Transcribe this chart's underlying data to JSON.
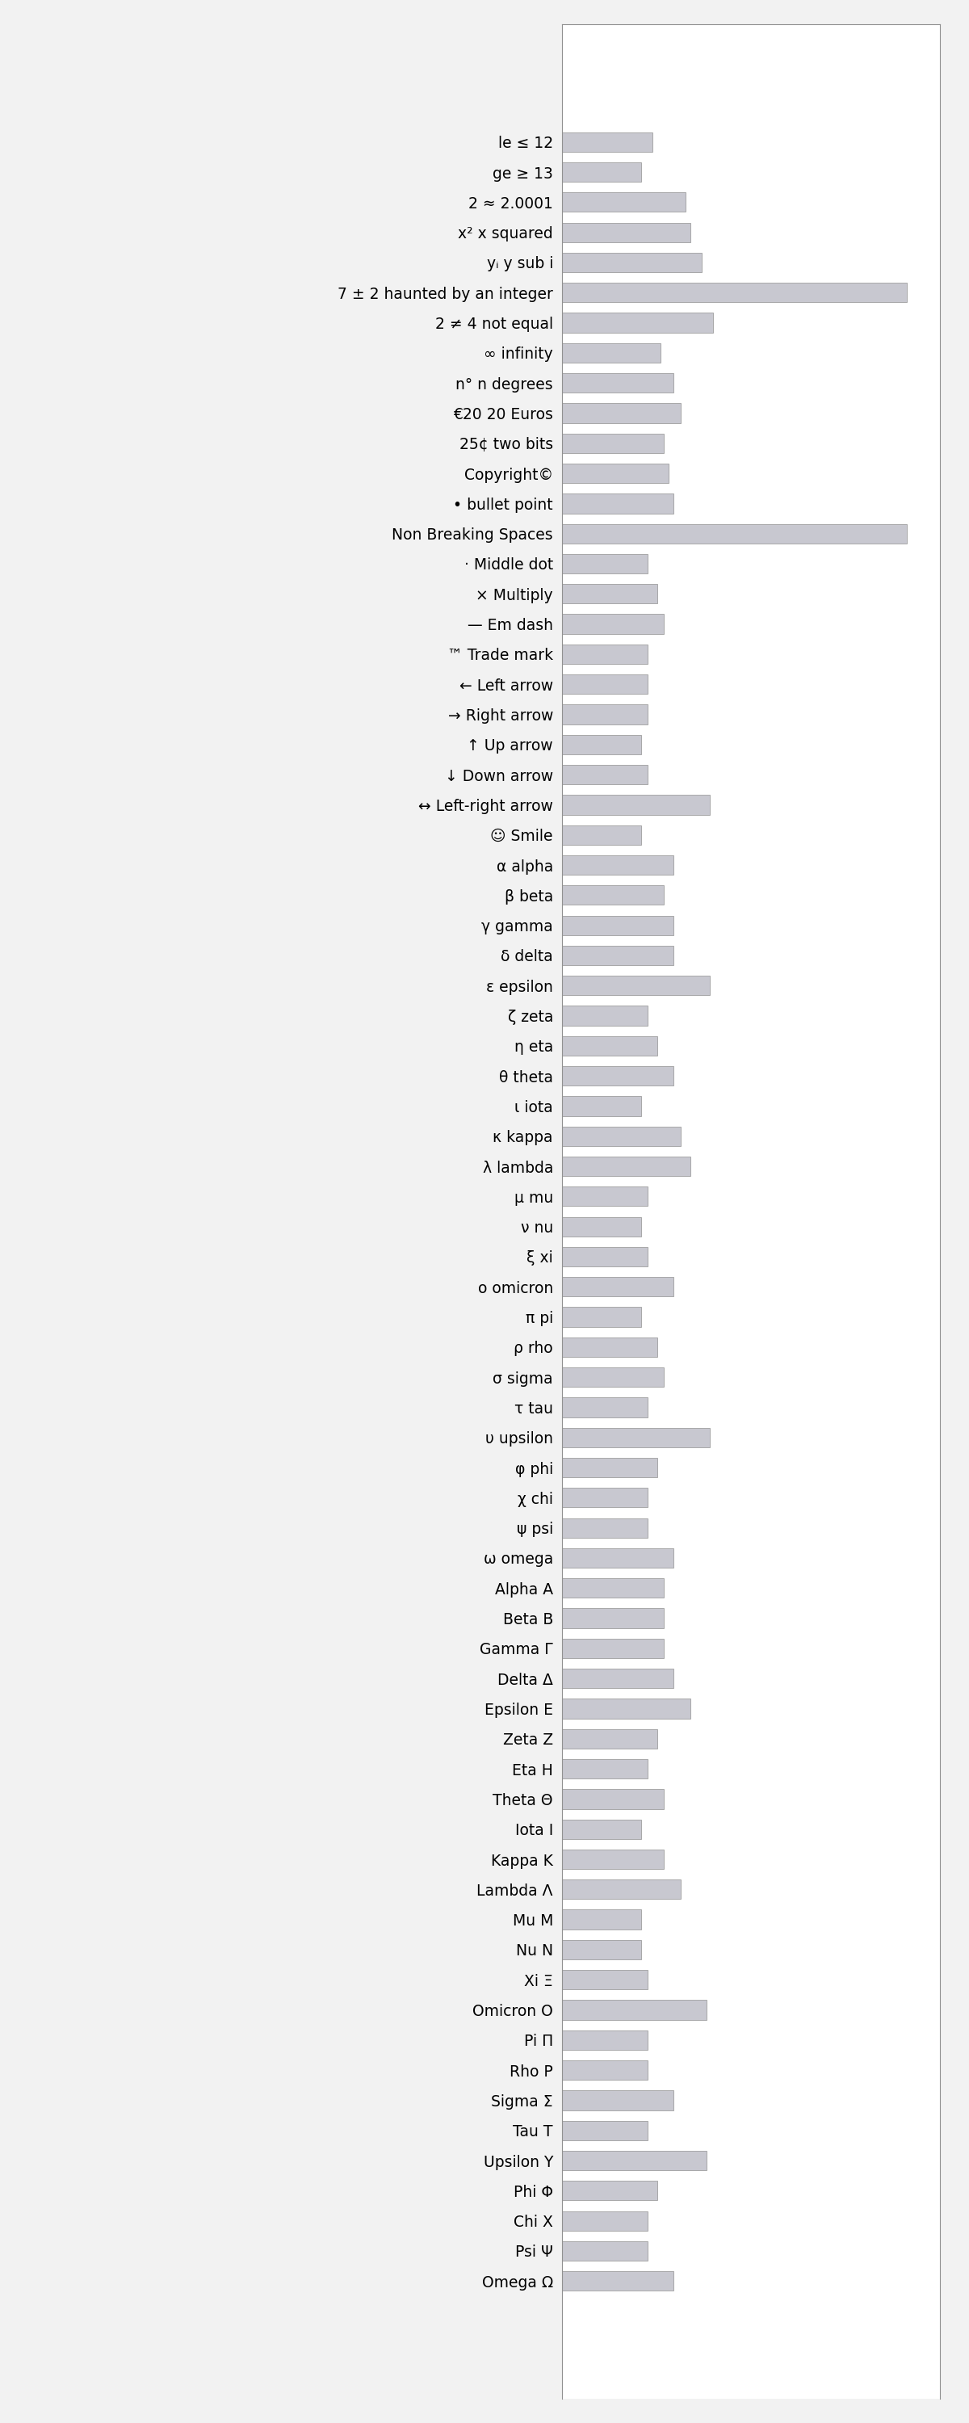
{
  "labels": [
    "le ≤ 12",
    "ge ≥ 13",
    "2 ≈ 2.0001",
    "x² x squared",
    "yᵢ y sub i",
    "7 ± 2 haunted by an integer",
    "2 ≠ 4 not equal",
    "∞ infinity",
    "n° n degrees",
    "€20 20 Euros",
    "25¢ two bits",
    "Copyright©",
    "• bullet point",
    "Non Breaking Spaces",
    "· Middle dot",
    "× Multiply",
    "— Em dash",
    "™ Trade mark",
    "← Left arrow",
    "→ Right arrow",
    "↑ Up arrow",
    "↓ Down arrow",
    "↔ Left-right arrow",
    "☺ Smile",
    "α alpha",
    "β beta",
    "γ gamma",
    "δ delta",
    "ε epsilon",
    "ζ zeta",
    "η eta",
    "θ theta",
    "ι iota",
    "κ kappa",
    "λ lambda",
    "μ mu",
    "ν nu",
    "ξ xi",
    "o omicron",
    "π pi",
    "ρ rho",
    "σ sigma",
    "τ tau",
    "υ upsilon",
    "φ phi",
    "χ chi",
    "ψ psi",
    "ω omega",
    "Alpha A",
    "Beta B",
    "Gamma Γ",
    "Delta Δ",
    "Epsilon E",
    "Zeta Z",
    "Eta H",
    "Theta Θ",
    "Iota I",
    "Kappa K",
    "Lambda Λ",
    "Mu M",
    "Nu N",
    "Xi Ξ",
    "Omicron O",
    "Pi Π",
    "Rho P",
    "Sigma Σ",
    "Tau T",
    "Upsilon Υ",
    "Phi Φ",
    "Chi X",
    "Psi Ψ",
    "Omega Ω"
  ],
  "values": [
    55,
    48,
    75,
    78,
    85,
    210,
    92,
    60,
    68,
    72,
    62,
    65,
    68,
    210,
    52,
    58,
    62,
    52,
    52,
    52,
    48,
    52,
    90,
    48,
    68,
    62,
    68,
    68,
    90,
    52,
    58,
    68,
    48,
    72,
    78,
    52,
    48,
    52,
    68,
    48,
    58,
    62,
    52,
    90,
    58,
    52,
    52,
    68,
    62,
    62,
    62,
    68,
    78,
    58,
    52,
    62,
    48,
    62,
    72,
    48,
    48,
    52,
    88,
    52,
    52,
    68,
    52,
    88,
    58,
    52,
    52,
    68
  ],
  "bar_color": "#c8c8d0",
  "bar_edge_color": "#909090",
  "bg_color": "#f2f2f2",
  "axes_bg": "#ffffff",
  "font_size": 13.5,
  "bar_height": 0.65,
  "xlim": 230,
  "figsize": [
    12,
    30
  ]
}
